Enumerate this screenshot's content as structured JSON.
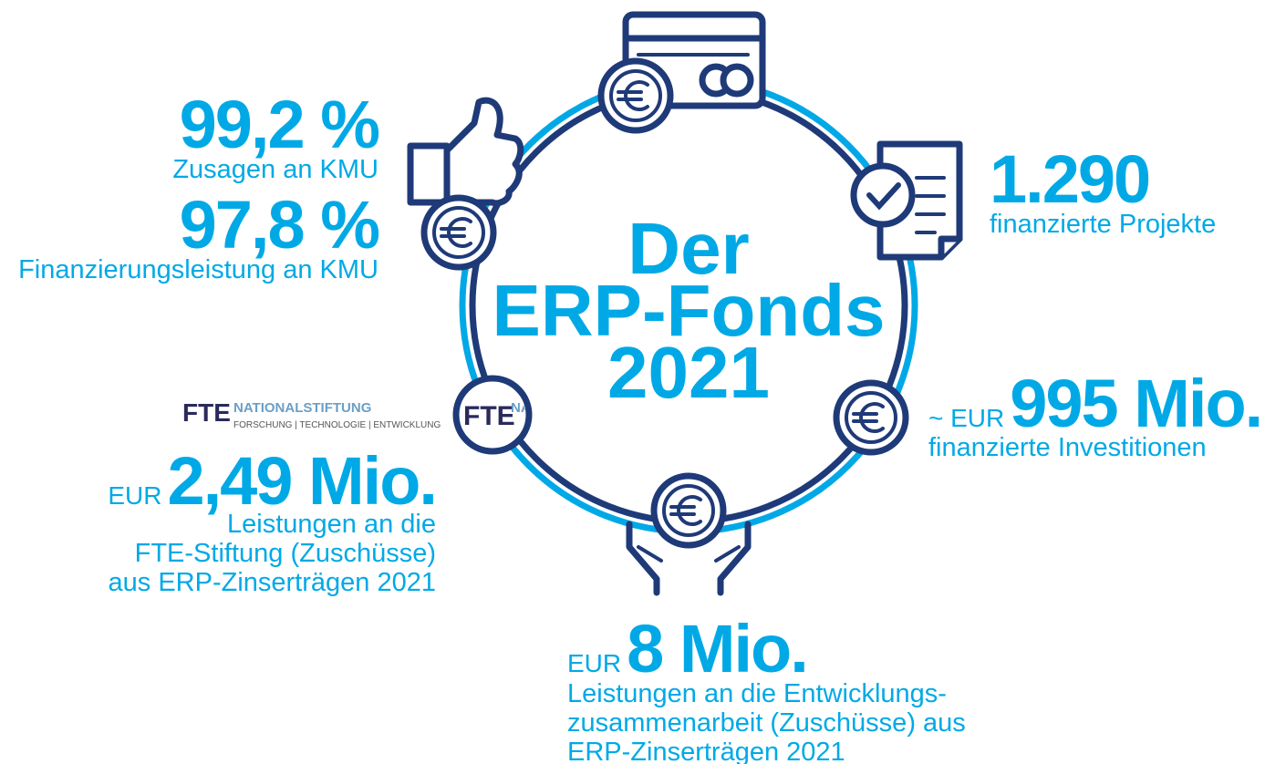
{
  "center_title": [
    "Der",
    "ERP-Fonds",
    "2021"
  ],
  "stats": [
    {
      "value": "99,2 %",
      "label": "Zusagen an KMU"
    },
    {
      "value": "97,8 %",
      "label": "Finanzierungsleistung an KMU"
    },
    {
      "value": "1.290",
      "label": "finanzierte Projekte"
    },
    {
      "prefix": "~ EUR",
      "value": "995 Mio.",
      "label": "finanzierte Investitionen"
    },
    {
      "prefix": "EUR",
      "value": "2,49 Mio.",
      "lines": [
        "Leistungen an die",
        "FTE-Stiftung (Zuschüsse)",
        "aus ERP-Zinserträgen 2021"
      ]
    },
    {
      "prefix": "EUR",
      "value": "8 Mio.",
      "lines": [
        "Leistungen an die Entwicklungs-",
        "zusammenarbeit (Zuschüsse) aus",
        "ERP-Zinserträgen 2021"
      ]
    }
  ],
  "logo": {
    "mark": "FTE",
    "name": "NATIONALSTIFTUNG",
    "tagline": "FORSCHUNG | TECHNOLOGIE | ENTWICKLUNG"
  }
}
